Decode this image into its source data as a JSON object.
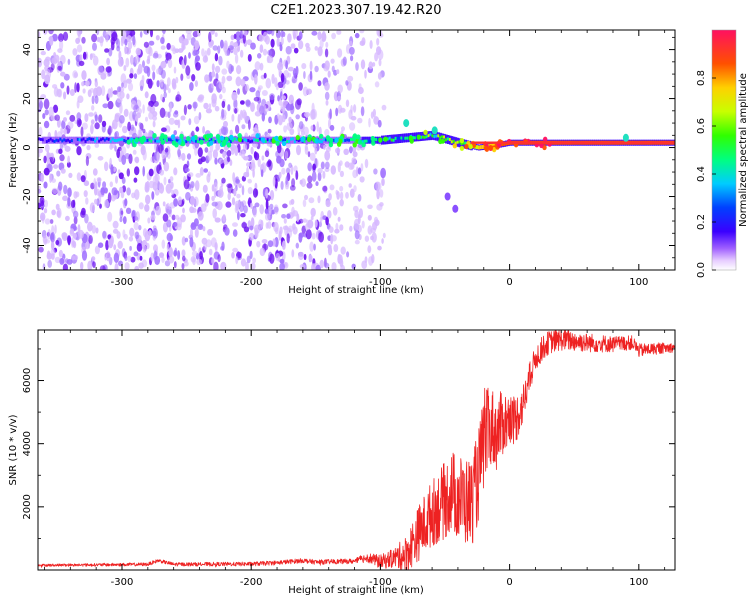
{
  "title": "C2E1.2023.307.19.42.R20",
  "colors": {
    "trace": "#ee2222",
    "weak_speckle": "#d6b8ff",
    "mid_speckle": "#a070ff",
    "strong_speckle": "#6a10f0"
  },
  "chart_data": [
    {
      "type": "heatmap",
      "name": "spectrogram",
      "xlabel": "Height of straight line (km)",
      "ylabel": "Frequency (Hz)",
      "xlim": [
        -365,
        128
      ],
      "ylim": [
        -50,
        48
      ],
      "xticks": [
        -300,
        -200,
        -100,
        0,
        100
      ],
      "xtick_labels": [
        "-300",
        "-200",
        "-100",
        "0",
        "100"
      ],
      "yticks": [
        -40,
        -20,
        0,
        20,
        40
      ],
      "ytick_labels": [
        "-40",
        "-20",
        "0",
        "20",
        "40"
      ],
      "colorbar": {
        "label": "Normalized spectral amplitude",
        "range": [
          0,
          1
        ],
        "ticks": [
          0.0,
          0.2,
          0.4,
          0.6,
          0.8
        ],
        "tick_labels": [
          "0.0",
          "0.2",
          "0.4",
          "0.6",
          "0.8"
        ],
        "colormap": [
          "#ffffff",
          "#e6ccff",
          "#a060ff",
          "#3a00ff",
          "#0040ff",
          "#00ccff",
          "#00ff80",
          "#30ff00",
          "#c8ff00",
          "#ffd000",
          "#ff5000",
          "#ff1060"
        ]
      },
      "carrier": {
        "frequency_hz": [
          [
            -365,
            3
          ],
          [
            -100,
            3
          ],
          [
            -60,
            5
          ],
          [
            -40,
            2
          ],
          [
            -25,
            0
          ],
          [
            -10,
            1
          ],
          [
            0,
            2
          ],
          [
            128,
            2
          ]
        ],
        "peak_amplitude": [
          [
            -365,
            0.3
          ],
          [
            -290,
            0.45
          ],
          [
            -200,
            0.45
          ],
          [
            -120,
            0.5
          ],
          [
            -70,
            0.55
          ],
          [
            -40,
            0.7
          ],
          [
            0,
            0.9
          ],
          [
            128,
            0.95
          ]
        ],
        "bright_blobs": [
          {
            "x": -80,
            "y": 10
          },
          {
            "x": -58,
            "y": 7
          },
          {
            "x": -48,
            "y": -20
          },
          {
            "x": -42,
            "y": -25
          },
          {
            "x": 90,
            "y": 4
          }
        ]
      },
      "noise_region": {
        "x_range": [
          -365,
          -97
        ],
        "density_regions": [
          {
            "x_range": [
              -365,
              -270
            ],
            "level": "dense"
          },
          {
            "x_range": [
              -270,
              -200
            ],
            "level": "dense"
          },
          {
            "x_range": [
              -200,
              -140
            ],
            "level": "dense"
          },
          {
            "x_range": [
              -140,
              -97
            ],
            "level": "sparse"
          }
        ]
      }
    },
    {
      "type": "line",
      "name": "snr",
      "xlabel": "Height of straight line (km)",
      "ylabel": "SNR (10 * v/v)",
      "xlim": [
        -365,
        128
      ],
      "ylim": [
        0,
        7600
      ],
      "xticks": [
        -300,
        -200,
        -100,
        0,
        100
      ],
      "xtick_labels": [
        "-300",
        "-200",
        "-100",
        "0",
        "100"
      ],
      "yticks": [
        2000,
        4000,
        6000
      ],
      "ytick_labels": [
        "2000",
        "4000",
        "6000"
      ],
      "series": [
        {
          "name": "SNR",
          "x": [
            -365,
            -300,
            -280,
            -272,
            -260,
            -200,
            -180,
            -160,
            -150,
            -120,
            -110,
            -100,
            -80,
            -70,
            -60,
            -50,
            -45,
            -40,
            -35,
            -30,
            -25,
            -20,
            -15,
            -10,
            -5,
            0,
            5,
            10,
            15,
            20,
            25,
            30,
            40,
            60,
            80,
            95,
            100,
            110,
            128
          ],
          "y": [
            150,
            170,
            180,
            300,
            180,
            190,
            230,
            300,
            250,
            280,
            400,
            250,
            500,
            1200,
            1800,
            2200,
            2500,
            2300,
            2200,
            2100,
            2800,
            4000,
            4600,
            4300,
            4700,
            4700,
            4800,
            5200,
            6000,
            6700,
            7000,
            7200,
            7300,
            7200,
            7150,
            7200,
            6950,
            7000,
            7050
          ],
          "noise_amplitude": [
            [
              -365,
              40
            ],
            [
              -120,
              80
            ],
            [
              -90,
              300
            ],
            [
              -70,
              900
            ],
            [
              -40,
              1400
            ],
            [
              -20,
              1500
            ],
            [
              0,
              900
            ],
            [
              20,
              400
            ],
            [
              128,
              150
            ]
          ]
        }
      ]
    }
  ]
}
